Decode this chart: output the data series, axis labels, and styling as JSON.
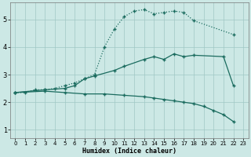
{
  "xlabel": "Humidex (Indice chaleur)",
  "xlim": [
    -0.5,
    23.5
  ],
  "ylim": [
    0.7,
    5.6
  ],
  "xticks": [
    0,
    1,
    2,
    3,
    4,
    5,
    6,
    7,
    8,
    9,
    10,
    11,
    12,
    13,
    14,
    15,
    16,
    17,
    18,
    19,
    20,
    21,
    22,
    23
  ],
  "yticks": [
    1,
    2,
    3,
    4,
    5
  ],
  "background_color": "#cce8e5",
  "grid_color": "#a0c8c4",
  "line_color": "#1a6b5e",
  "line1_x": [
    0,
    1,
    2,
    3,
    4,
    5,
    6,
    7,
    8,
    9,
    10,
    11,
    12,
    13,
    14,
    15,
    16,
    17,
    18,
    22
  ],
  "line1_y": [
    2.35,
    2.35,
    2.45,
    2.45,
    2.5,
    2.6,
    2.7,
    2.85,
    3.0,
    4.0,
    4.65,
    5.1,
    5.3,
    5.35,
    5.2,
    5.25,
    5.3,
    5.25,
    4.95,
    4.45
  ],
  "line2_x": [
    0,
    3,
    5,
    6,
    7,
    8,
    10,
    11,
    13,
    14,
    15,
    16,
    17,
    18,
    21,
    22
  ],
  "line2_y": [
    2.35,
    2.45,
    2.5,
    2.6,
    2.85,
    2.95,
    3.15,
    3.3,
    3.55,
    3.65,
    3.55,
    3.75,
    3.65,
    3.7,
    3.65,
    2.6
  ],
  "line3_x": [
    0,
    3,
    5,
    7,
    9,
    11,
    13,
    14,
    15,
    16,
    17,
    18,
    19,
    20,
    21,
    22
  ],
  "line3_y": [
    2.35,
    2.4,
    2.35,
    2.3,
    2.3,
    2.25,
    2.2,
    2.15,
    2.1,
    2.05,
    2.0,
    1.95,
    1.85,
    1.7,
    1.55,
    1.3
  ]
}
